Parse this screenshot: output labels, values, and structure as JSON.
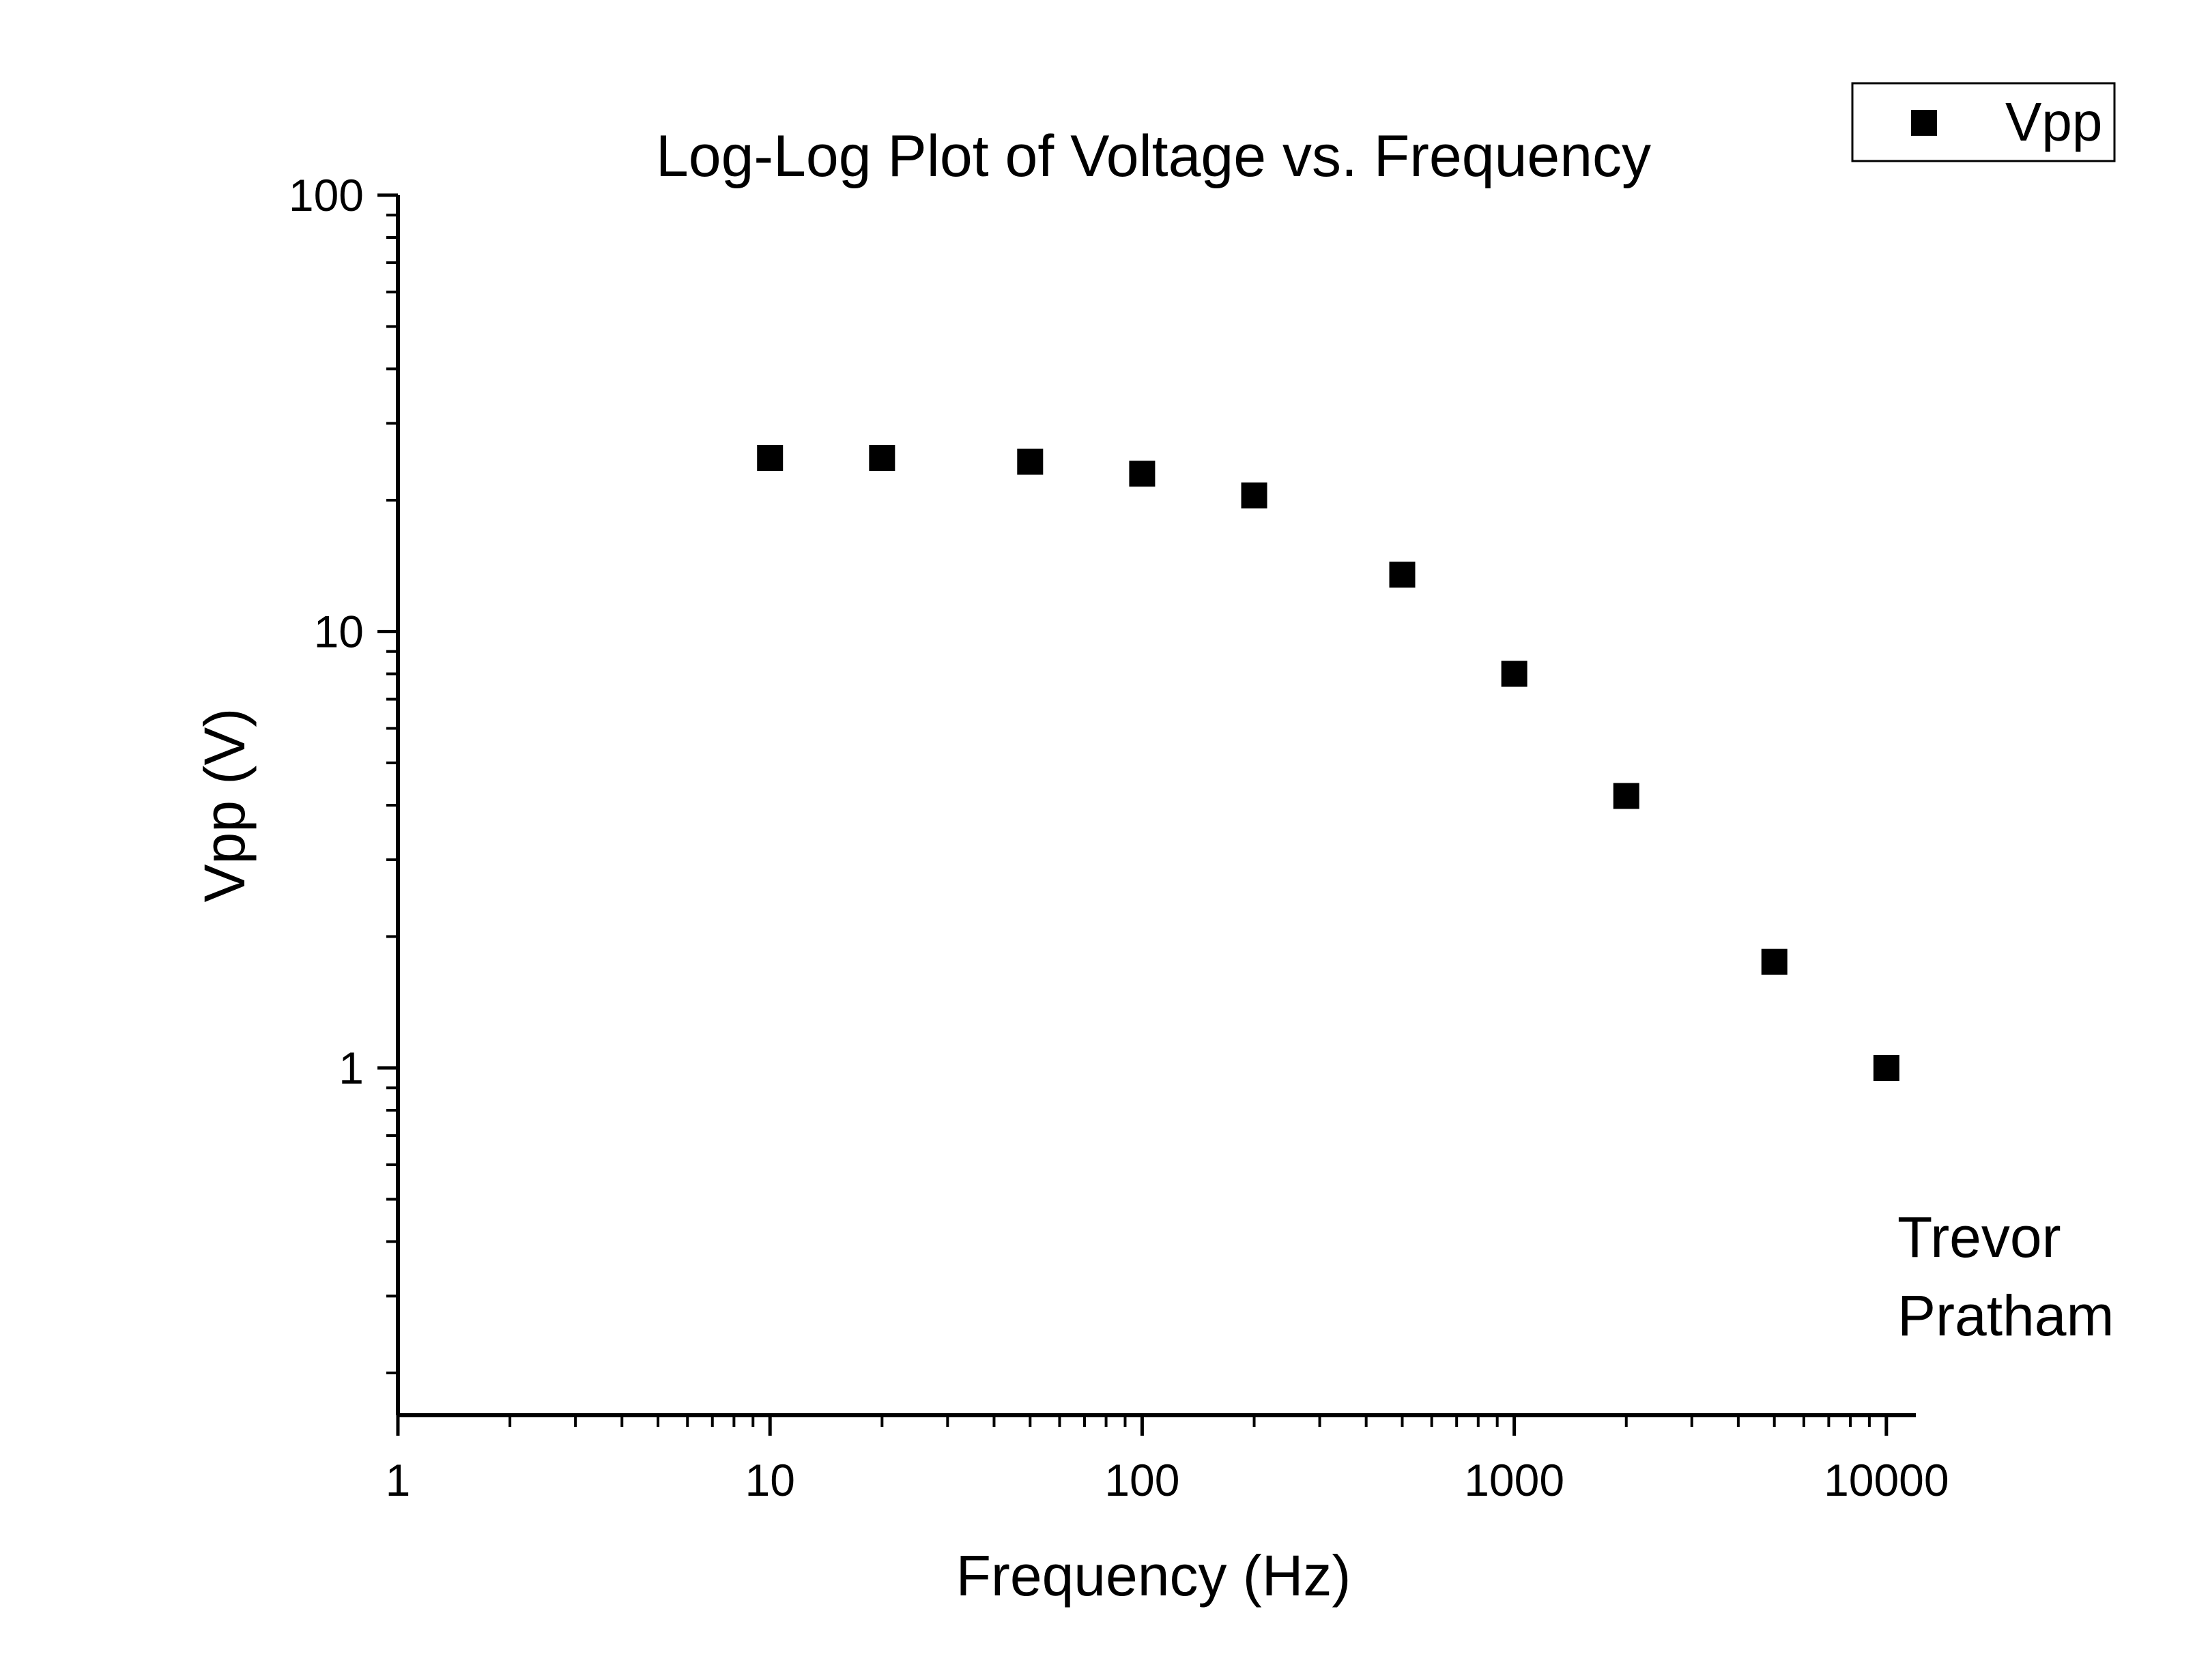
{
  "chart_data": {
    "type": "scatter",
    "title": "Log-Log Plot of Voltage vs. Frequency",
    "xlabel": "Frequency (Hz)",
    "ylabel": "Vpp (V)",
    "xscale": "log",
    "yscale": "log",
    "xlim": [
      1,
      12000
    ],
    "ylim": [
      0.16,
      100
    ],
    "xticks": [
      1,
      10,
      100,
      1000,
      10000
    ],
    "xtick_labels": [
      "1",
      "10",
      "100",
      "1000",
      "10000"
    ],
    "yticks": [
      1,
      10,
      100
    ],
    "ytick_labels": [
      "1",
      "10",
      "100"
    ],
    "grid": false,
    "legend_position": "top-right",
    "marker": "square",
    "colors": {
      "marker": "#000000",
      "axis": "#000000",
      "background": "#ffffff"
    },
    "series": [
      {
        "name": "Vpp",
        "x": [
          10,
          20,
          50,
          100,
          200,
          500,
          1000,
          2000,
          5000,
          10000
        ],
        "y": [
          25,
          25,
          24.5,
          23,
          20.5,
          13.5,
          8,
          4.2,
          1.75,
          1
        ]
      }
    ],
    "annotation": {
      "lines": [
        "Trevor",
        "Pratham"
      ]
    }
  }
}
